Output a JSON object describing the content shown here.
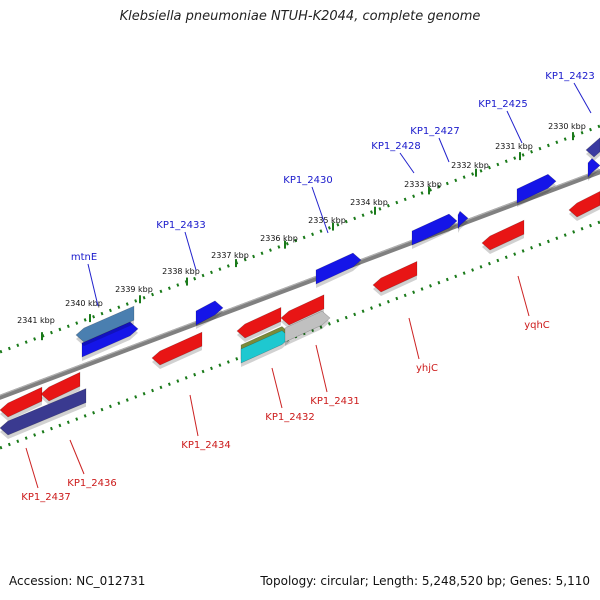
{
  "title": "Klebsiella pneumoniae NTUH-K2044, complete genome",
  "footer": {
    "accession": "Accession: NC_012731",
    "topology": "Topology: circular; Length: 5,248,520 bp; Genes: 5,110"
  },
  "colors": {
    "forward_gene": "#1010e0",
    "reverse_gene": "#e01010",
    "forward_label": "#1a1acc",
    "reverse_label": "#cc1a1a",
    "backbone": "#7a7a7a",
    "tick_track": "#1a7a1a"
  },
  "kbp_ticks": [
    "2330 kbp",
    "2331 kbp",
    "2332 kbp",
    "2333 kbp",
    "2334 kbp",
    "2335 kbp",
    "2336 kbp",
    "2337 kbp",
    "2338 kbp",
    "2339 kbp",
    "2340 kbp",
    "2341 kbp"
  ],
  "forward_genes": [
    "KP1_2423",
    "KP1_2425",
    "KP1_2427",
    "KP1_2428",
    "KP1_2430",
    "KP1_2433",
    "mtnE"
  ],
  "reverse_genes": [
    "yqhC",
    "yhjC",
    "KP1_2431",
    "KP1_2432",
    "KP1_2434",
    "KP1_2436",
    "KP1_2437"
  ]
}
